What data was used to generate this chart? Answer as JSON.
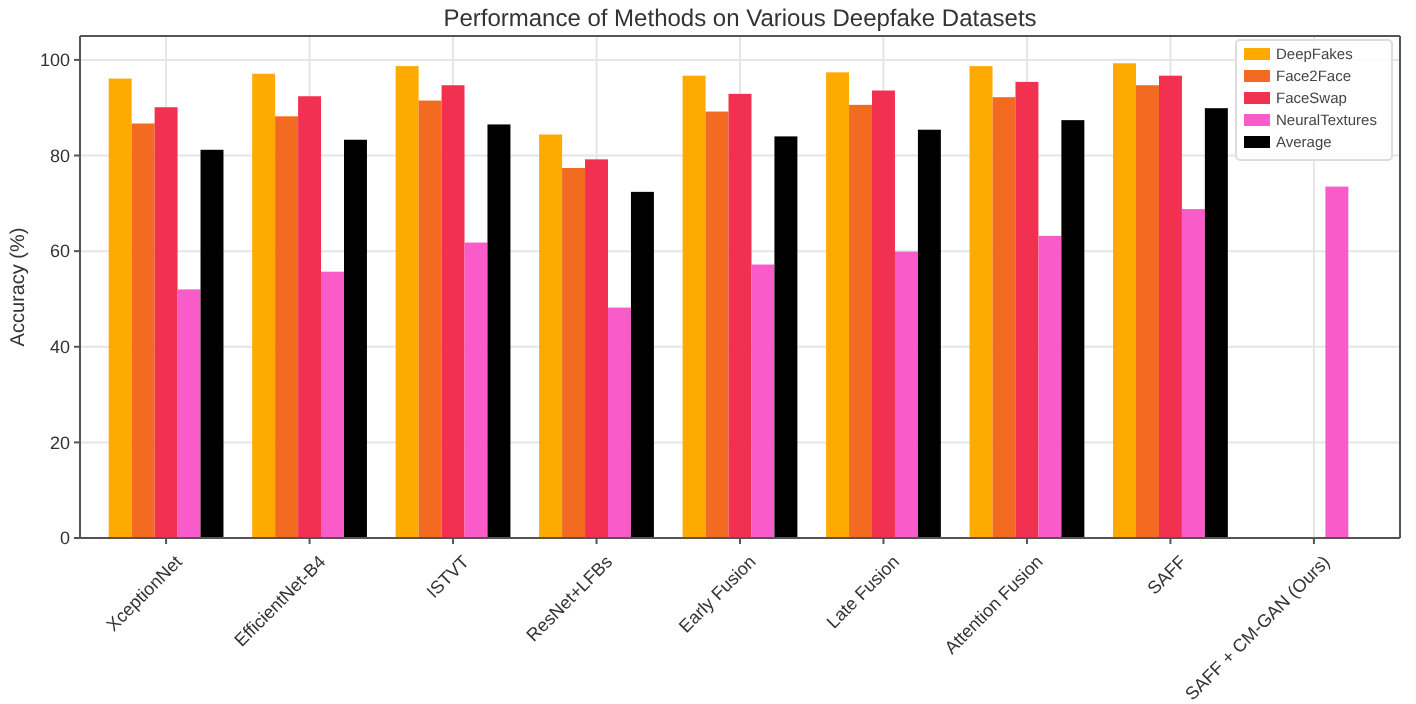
{
  "chart_data": {
    "type": "bar",
    "title": "Performance of Methods on Various Deepfake Datasets",
    "ylabel": "Accuracy (%)",
    "categories": [
      "XceptionNet",
      "EfficientNet-B4",
      "ISTVT",
      "ResNet+LFBs",
      "Early Fusion",
      "Late Fusion",
      "Attention Fusion",
      "SAFF",
      "SAFF + CM-GAN (Ours)"
    ],
    "series": [
      {
        "name": "DeepFakes",
        "color": "#ffaa00",
        "values": [
          96.1,
          97.1,
          98.7,
          84.4,
          96.7,
          97.4,
          98.7,
          99.3,
          null
        ]
      },
      {
        "name": "Face2Face",
        "color": "#f26b21",
        "values": [
          86.7,
          88.2,
          91.5,
          77.4,
          89.2,
          90.6,
          92.2,
          94.7,
          null
        ]
      },
      {
        "name": "FaceSwap",
        "color": "#f2304f",
        "values": [
          90.1,
          92.4,
          94.7,
          79.2,
          92.9,
          93.6,
          95.4,
          96.7,
          null
        ]
      },
      {
        "name": "NeuralTextures",
        "color": "#f95bc8",
        "values": [
          52.0,
          55.7,
          61.8,
          48.2,
          57.2,
          59.9,
          63.2,
          68.8,
          73.5
        ]
      },
      {
        "name": "Average",
        "color": "#000000",
        "values": [
          81.2,
          83.3,
          86.5,
          72.4,
          84.0,
          85.4,
          87.4,
          89.9,
          null
        ]
      }
    ],
    "ylim": [
      0,
      105
    ],
    "yticks": [
      0,
      20,
      40,
      60,
      80,
      100
    ],
    "grid": true,
    "legend": "top right"
  }
}
